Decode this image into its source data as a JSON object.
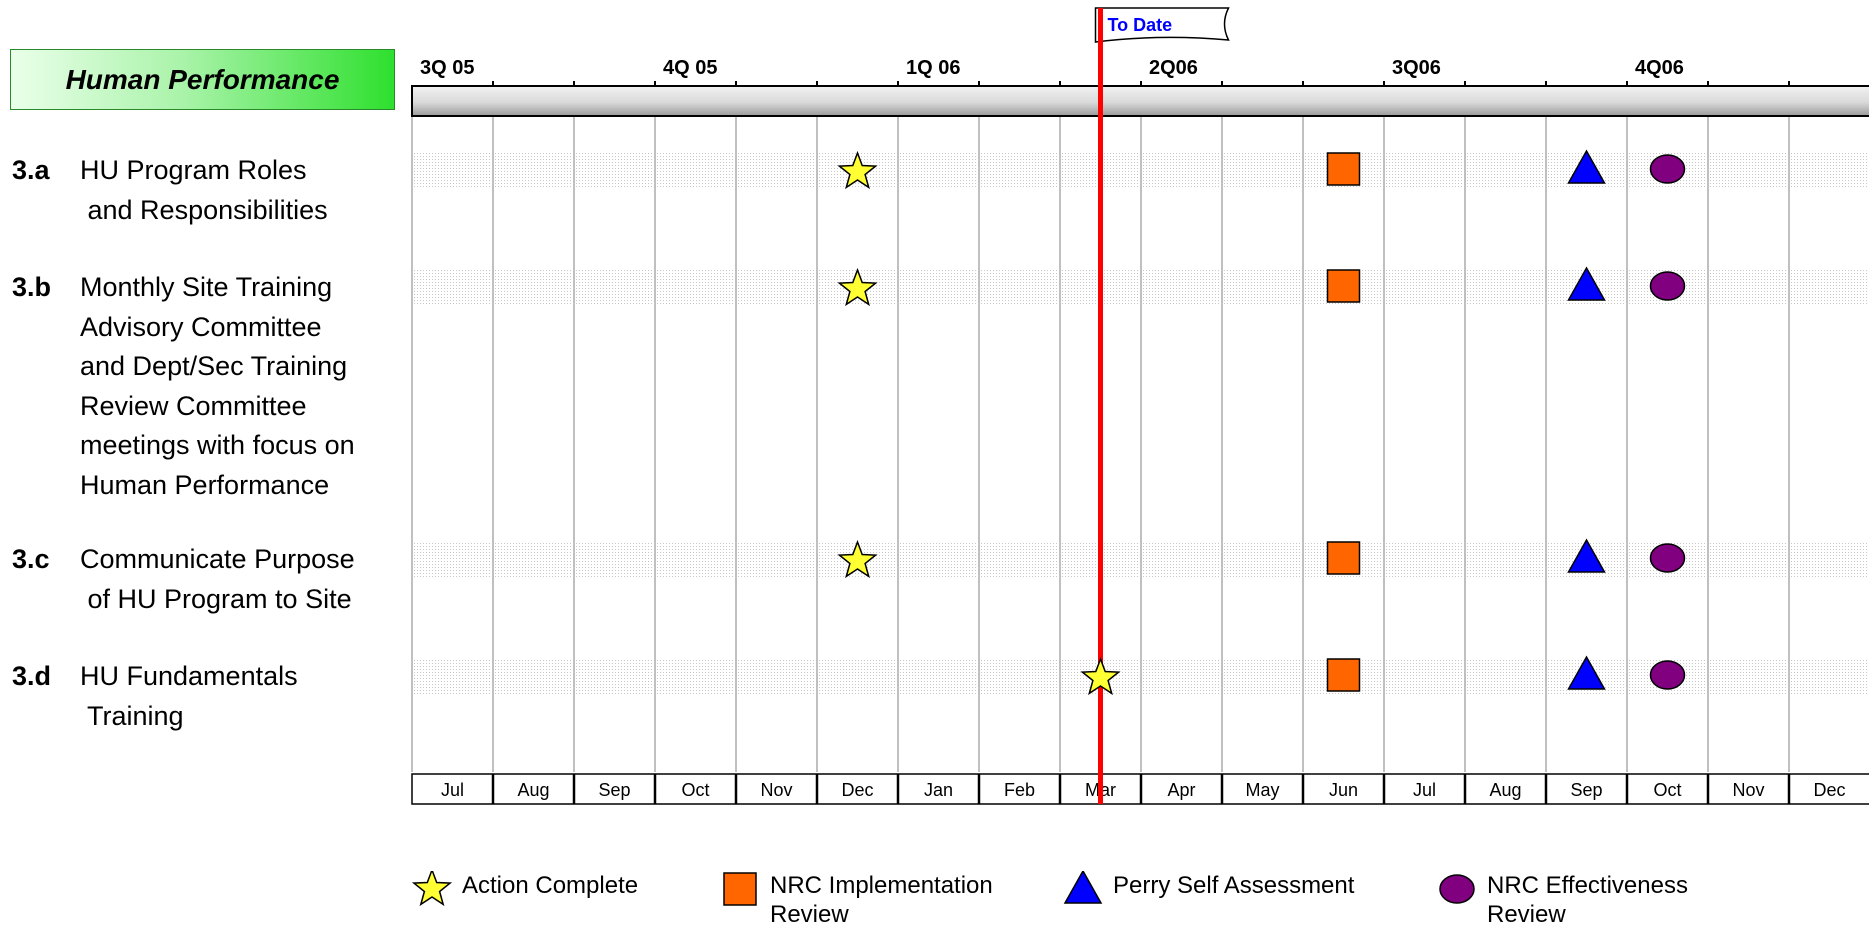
{
  "title": "Human Performance",
  "to_date_label": "To Date",
  "quarters": [
    "3Q 05",
    "4Q 05",
    "1Q 06",
    "2Q06",
    "3Q06",
    "4Q06"
  ],
  "months": [
    "Jul",
    "Aug",
    "Sep",
    "Oct",
    "Nov",
    "Dec",
    "Jan",
    "Feb",
    "Mar",
    "Apr",
    "May",
    "Jun",
    "Jul",
    "Aug",
    "Sep",
    "Oct",
    "Nov",
    "Dec"
  ],
  "to_date_month_index": 8.5,
  "tasks": [
    {
      "id": "3.a",
      "lines": [
        "HU Program Roles",
        " and Responsibilities"
      ],
      "milestones": [
        {
          "type": "action-complete",
          "month": 5.5
        },
        {
          "type": "nrc-implementation",
          "month": 11.5
        },
        {
          "type": "perry-self-assessment",
          "month": 14.5
        },
        {
          "type": "nrc-effectiveness",
          "month": 15.5
        }
      ]
    },
    {
      "id": "3.b",
      "lines": [
        "Monthly Site Training",
        "Advisory Committee",
        "and Dept/Sec Training",
        "Review Committee",
        "meetings with focus on",
        "Human Performance"
      ],
      "milestones": [
        {
          "type": "action-complete",
          "month": 5.5
        },
        {
          "type": "nrc-implementation",
          "month": 11.5
        },
        {
          "type": "perry-self-assessment",
          "month": 14.5
        },
        {
          "type": "nrc-effectiveness",
          "month": 15.5
        }
      ]
    },
    {
      "id": "3.c",
      "lines": [
        "Communicate Purpose",
        " of HU Program to Site"
      ],
      "milestones": [
        {
          "type": "action-complete",
          "month": 5.5
        },
        {
          "type": "nrc-implementation",
          "month": 11.5
        },
        {
          "type": "perry-self-assessment",
          "month": 14.5
        },
        {
          "type": "nrc-effectiveness",
          "month": 15.5
        }
      ]
    },
    {
      "id": "3.d",
      "lines": [
        "HU Fundamentals",
        " Training"
      ],
      "milestones": [
        {
          "type": "action-complete",
          "month": 8.5
        },
        {
          "type": "nrc-implementation",
          "month": 11.5
        },
        {
          "type": "perry-self-assessment",
          "month": 14.5
        },
        {
          "type": "nrc-effectiveness",
          "month": 15.5
        }
      ]
    }
  ],
  "legend": [
    {
      "type": "action-complete",
      "label": "Action Complete"
    },
    {
      "type": "nrc-implementation",
      "label": "NRC Implementation\nReview"
    },
    {
      "type": "perry-self-assessment",
      "label": "Perry Self Assessment"
    },
    {
      "type": "nrc-effectiveness",
      "label": "NRC Effectiveness\nReview"
    }
  ],
  "colors": {
    "action-complete": "#ffff33",
    "nrc-implementation": "#ff6600",
    "perry-self-assessment": "#0000ff",
    "nrc-effectiveness": "#800080",
    "to_date_line": "#ff0000",
    "to_date_text": "#0000ff",
    "grid": "#c0c0c0"
  }
}
